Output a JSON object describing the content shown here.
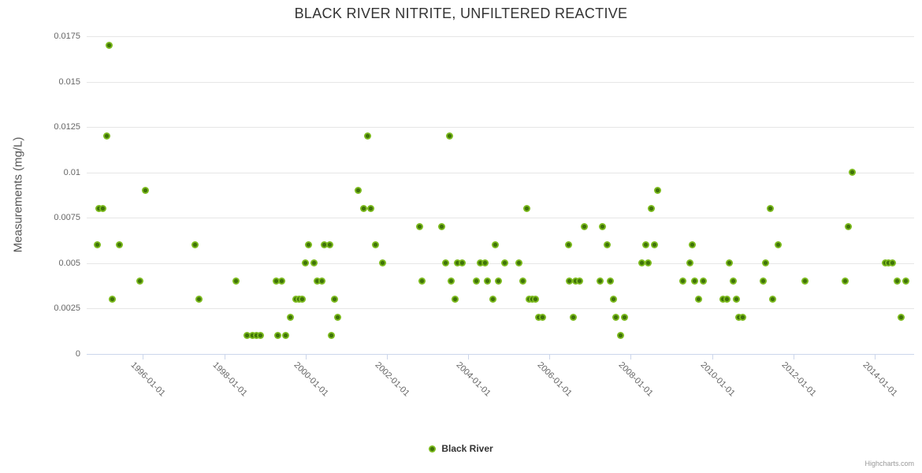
{
  "credits": {
    "text": "Highcharts.com"
  },
  "colors": {
    "background": "#FFFFFF",
    "grid": "#E6E6E6",
    "axis": "#CCD6EB",
    "title_text": "#333333",
    "axis_label_text": "#666666",
    "axis_title_text": "#555555",
    "legend_text": "#333333",
    "credit_text": "#999999",
    "marker_outer": "#7CBA1E",
    "marker_inner": "#3F7308"
  },
  "chart_data": {
    "type": "scatter",
    "title": "BLACK RIVER NITRITE, UNFILTERED REACTIVE",
    "xlabel": "",
    "ylabel": "Measurements (mg/L)",
    "grid": true,
    "ylim": [
      0,
      0.0175
    ],
    "y_ticks": [
      0,
      0.0025,
      0.005,
      0.0075,
      0.01,
      0.0125,
      0.015,
      0.0175
    ],
    "y_tick_labels": [
      "0",
      "0.0025",
      "0.005",
      "0.0075",
      "0.01",
      "0.0125",
      "0.015",
      "0.0175"
    ],
    "xlim_years": [
      1994.614,
      2014.971
    ],
    "x_tick_years": [
      1996,
      1998,
      2000,
      2002,
      2004,
      2006,
      2008,
      2010,
      2012,
      2014
    ],
    "x_tick_labels": [
      "1996-01-01",
      "1998-01-01",
      "2000-01-01",
      "2002-01-01",
      "2004-01-01",
      "2006-01-01",
      "2008-01-01",
      "2010-01-01",
      "2012-01-01",
      "2014-01-01"
    ],
    "legend": {
      "position": "bottom",
      "label": "Black River"
    },
    "series": [
      {
        "name": "Black River",
        "x_unit": "decimal_year",
        "points": [
          [
            1994.87,
            0.006
          ],
          [
            1994.92,
            0.008
          ],
          [
            1995.02,
            0.008
          ],
          [
            1995.11,
            0.012
          ],
          [
            1995.16,
            0.017
          ],
          [
            1995.25,
            0.003
          ],
          [
            1995.42,
            0.006
          ],
          [
            1995.93,
            0.004
          ],
          [
            1996.05,
            0.009
          ],
          [
            1997.28,
            0.006
          ],
          [
            1997.37,
            0.003
          ],
          [
            1998.28,
            0.004
          ],
          [
            1998.56,
            0.001
          ],
          [
            1998.7,
            0.001
          ],
          [
            1998.8,
            0.001
          ],
          [
            1998.89,
            0.001
          ],
          [
            1999.28,
            0.004
          ],
          [
            1999.32,
            0.001
          ],
          [
            1999.42,
            0.004
          ],
          [
            1999.5,
            0.001
          ],
          [
            1999.62,
            0.002
          ],
          [
            1999.76,
            0.003
          ],
          [
            1999.84,
            0.003
          ],
          [
            1999.91,
            0.003
          ],
          [
            1999.99,
            0.005
          ],
          [
            2000.07,
            0.006
          ],
          [
            2000.21,
            0.005
          ],
          [
            2000.28,
            0.004
          ],
          [
            2000.41,
            0.004
          ],
          [
            2000.46,
            0.006
          ],
          [
            2000.59,
            0.006
          ],
          [
            2000.64,
            0.001
          ],
          [
            2000.71,
            0.003
          ],
          [
            2000.78,
            0.002
          ],
          [
            2001.3,
            0.009
          ],
          [
            2001.42,
            0.008
          ],
          [
            2001.52,
            0.012
          ],
          [
            2001.61,
            0.008
          ],
          [
            2001.71,
            0.006
          ],
          [
            2001.9,
            0.005
          ],
          [
            2002.8,
            0.007
          ],
          [
            2002.87,
            0.004
          ],
          [
            2003.35,
            0.007
          ],
          [
            2003.45,
            0.005
          ],
          [
            2003.55,
            0.012
          ],
          [
            2003.58,
            0.004
          ],
          [
            2003.68,
            0.003
          ],
          [
            2003.74,
            0.005
          ],
          [
            2003.86,
            0.005
          ],
          [
            2004.21,
            0.004
          ],
          [
            2004.3,
            0.005
          ],
          [
            2004.42,
            0.005
          ],
          [
            2004.48,
            0.004
          ],
          [
            2004.6,
            0.003
          ],
          [
            2004.67,
            0.006
          ],
          [
            2004.75,
            0.004
          ],
          [
            2004.89,
            0.005
          ],
          [
            2005.25,
            0.005
          ],
          [
            2005.35,
            0.004
          ],
          [
            2005.44,
            0.008
          ],
          [
            2005.5,
            0.003
          ],
          [
            2005.58,
            0.003
          ],
          [
            2005.66,
            0.003
          ],
          [
            2005.74,
            0.002
          ],
          [
            2005.83,
            0.002
          ],
          [
            2006.46,
            0.006
          ],
          [
            2006.48,
            0.004
          ],
          [
            2006.59,
            0.002
          ],
          [
            2006.65,
            0.004
          ],
          [
            2006.75,
            0.004
          ],
          [
            2006.86,
            0.007
          ],
          [
            2007.25,
            0.004
          ],
          [
            2007.31,
            0.007
          ],
          [
            2007.41,
            0.006
          ],
          [
            2007.49,
            0.004
          ],
          [
            2007.58,
            0.003
          ],
          [
            2007.64,
            0.002
          ],
          [
            2007.75,
            0.001
          ],
          [
            2007.84,
            0.002
          ],
          [
            2008.27,
            0.005
          ],
          [
            2008.37,
            0.006
          ],
          [
            2008.43,
            0.005
          ],
          [
            2008.51,
            0.008
          ],
          [
            2008.59,
            0.006
          ],
          [
            2008.66,
            0.009
          ],
          [
            2009.28,
            0.004
          ],
          [
            2009.45,
            0.005
          ],
          [
            2009.51,
            0.006
          ],
          [
            2009.58,
            0.004
          ],
          [
            2009.67,
            0.003
          ],
          [
            2009.79,
            0.004
          ],
          [
            2010.27,
            0.003
          ],
          [
            2010.36,
            0.003
          ],
          [
            2010.43,
            0.005
          ],
          [
            2010.52,
            0.004
          ],
          [
            2010.59,
            0.003
          ],
          [
            2010.66,
            0.002
          ],
          [
            2010.75,
            0.002
          ],
          [
            2011.25,
            0.004
          ],
          [
            2011.31,
            0.005
          ],
          [
            2011.43,
            0.008
          ],
          [
            2011.49,
            0.003
          ],
          [
            2011.62,
            0.006
          ],
          [
            2012.28,
            0.004
          ],
          [
            2013.28,
            0.004
          ],
          [
            2013.36,
            0.007
          ],
          [
            2013.44,
            0.01
          ],
          [
            2014.26,
            0.005
          ],
          [
            2014.34,
            0.005
          ],
          [
            2014.43,
            0.005
          ],
          [
            2014.56,
            0.004
          ],
          [
            2014.65,
            0.002
          ],
          [
            2014.76,
            0.004
          ]
        ]
      }
    ]
  }
}
